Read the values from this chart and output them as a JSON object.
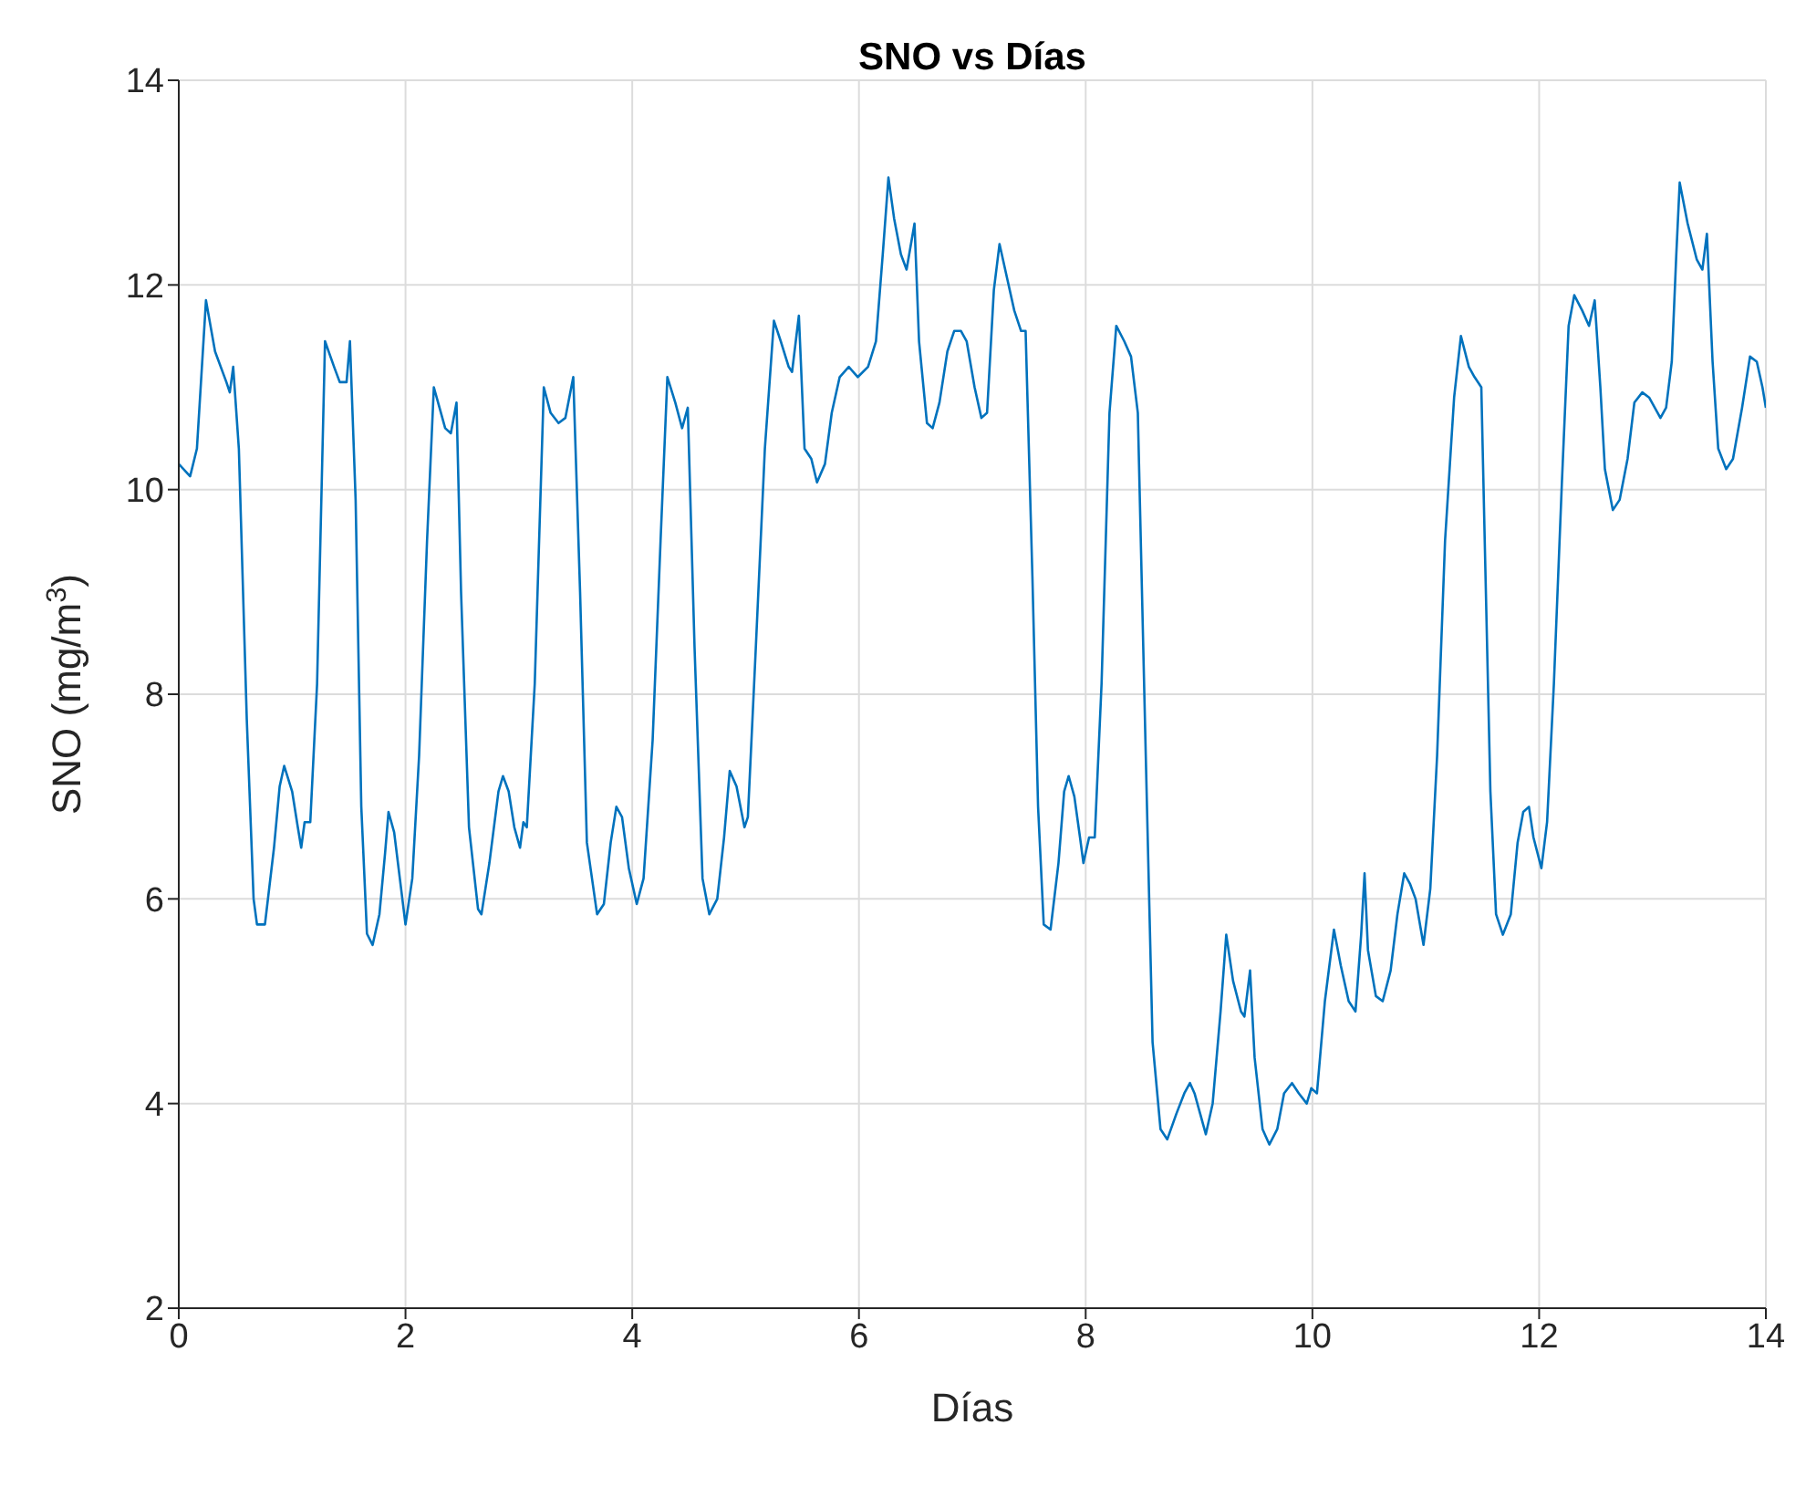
{
  "chart_data": {
    "type": "line",
    "title": "SNO vs Días",
    "xlabel": "Días",
    "ylabel": "SNO (mg/m$^{3}$)",
    "x": [
      0,
      0.1,
      0.16,
      0.24,
      0.32,
      0.42,
      0.45,
      0.48,
      0.53,
      0.6,
      0.66,
      0.69,
      0.76,
      0.84,
      0.89,
      0.93,
      1.0,
      1.05,
      1.08,
      1.11,
      1.16,
      1.22,
      1.29,
      1.37,
      1.42,
      1.48,
      1.51,
      1.56,
      1.61,
      1.66,
      1.71,
      1.77,
      1.82,
      1.85,
      1.9,
      1.95,
      2.0,
      2.06,
      2.12,
      2.19,
      2.25,
      2.3,
      2.35,
      2.4,
      2.45,
      2.49,
      2.56,
      2.64,
      2.67,
      2.74,
      2.82,
      2.86,
      2.91,
      2.96,
      3.01,
      3.04,
      3.07,
      3.14,
      3.22,
      3.28,
      3.35,
      3.41,
      3.48,
      3.54,
      3.6,
      3.69,
      3.75,
      3.81,
      3.86,
      3.91,
      3.97,
      4.04,
      4.1,
      4.18,
      4.25,
      4.31,
      4.38,
      4.44,
      4.49,
      4.55,
      4.62,
      4.68,
      4.75,
      4.81,
      4.86,
      4.92,
      4.99,
      5.02,
      5.09,
      5.17,
      5.25,
      5.31,
      5.38,
      5.41,
      5.47,
      5.52,
      5.58,
      5.63,
      5.7,
      5.76,
      5.83,
      5.91,
      5.99,
      6.08,
      6.15,
      6.21,
      6.26,
      6.31,
      6.37,
      6.42,
      6.49,
      6.53,
      6.6,
      6.65,
      6.71,
      6.78,
      6.84,
      6.9,
      6.95,
      7.02,
      7.08,
      7.13,
      7.19,
      7.24,
      7.31,
      7.37,
      7.43,
      7.47,
      7.53,
      7.58,
      7.63,
      7.69,
      7.76,
      7.81,
      7.85,
      7.9,
      7.95,
      7.98,
      8.03,
      8.08,
      8.14,
      8.21,
      8.27,
      8.34,
      8.4,
      8.46,
      8.53,
      8.59,
      8.66,
      8.72,
      8.8,
      8.87,
      8.92,
      8.96,
      9.01,
      9.06,
      9.12,
      9.19,
      9.24,
      9.3,
      9.37,
      9.4,
      9.45,
      9.49,
      9.56,
      9.62,
      9.69,
      9.75,
      9.82,
      9.88,
      9.95,
      9.99,
      10.04,
      10.11,
      10.19,
      10.25,
      10.32,
      10.38,
      10.43,
      10.46,
      10.49,
      10.56,
      10.62,
      10.69,
      10.75,
      10.81,
      10.86,
      10.91,
      10.98,
      11.04,
      11.1,
      11.17,
      11.25,
      11.31,
      11.38,
      11.43,
      11.49,
      11.52,
      11.57,
      11.62,
      11.68,
      11.75,
      11.81,
      11.86,
      11.91,
      11.95,
      12.02,
      12.07,
      12.13,
      12.2,
      12.26,
      12.31,
      12.38,
      12.44,
      12.49,
      12.54,
      12.58,
      12.65,
      12.71,
      12.78,
      12.84,
      12.91,
      12.97,
      13.02,
      13.07,
      13.12,
      13.17,
      13.21,
      13.24,
      13.31,
      13.39,
      13.44,
      13.48,
      13.53,
      13.58,
      13.65,
      13.71,
      13.79,
      13.86,
      13.92,
      13.97,
      14
    ],
    "series": [
      {
        "color": "#0072bd",
        "values": [
          10.25,
          10.13,
          10.4,
          11.85,
          11.35,
          11.05,
          10.95,
          11.2,
          10.4,
          7.75,
          6.0,
          5.75,
          5.75,
          6.5,
          7.1,
          7.3,
          7.05,
          6.7,
          6.5,
          6.75,
          6.75,
          8.1,
          11.45,
          11.2,
          11.05,
          11.05,
          11.45,
          9.9,
          6.9,
          5.66,
          5.55,
          5.85,
          6.45,
          6.85,
          6.65,
          6.2,
          5.75,
          6.2,
          7.4,
          9.5,
          11.0,
          10.8,
          10.6,
          10.55,
          10.85,
          9.0,
          6.7,
          5.9,
          5.85,
          6.35,
          7.05,
          7.2,
          7.05,
          6.7,
          6.5,
          6.75,
          6.7,
          8.1,
          11.0,
          10.75,
          10.65,
          10.7,
          11.1,
          9.0,
          6.55,
          5.85,
          5.95,
          6.55,
          6.9,
          6.8,
          6.3,
          5.95,
          6.2,
          7.55,
          9.5,
          11.1,
          10.85,
          10.6,
          10.8,
          8.45,
          6.2,
          5.85,
          6.0,
          6.6,
          7.25,
          7.1,
          6.7,
          6.8,
          8.45,
          10.4,
          11.65,
          11.45,
          11.2,
          11.15,
          11.7,
          10.4,
          10.3,
          10.07,
          10.25,
          10.75,
          11.1,
          11.2,
          11.1,
          11.2,
          11.45,
          12.3,
          13.05,
          12.65,
          12.3,
          12.15,
          12.6,
          11.45,
          10.65,
          10.6,
          10.85,
          11.35,
          11.55,
          11.55,
          11.45,
          11.0,
          10.7,
          10.75,
          11.95,
          12.4,
          12.05,
          11.75,
          11.55,
          11.55,
          9.15,
          6.9,
          5.75,
          5.7,
          6.35,
          7.05,
          7.2,
          7.0,
          6.6,
          6.35,
          6.6,
          6.6,
          8.1,
          10.75,
          11.6,
          11.45,
          11.3,
          10.75,
          7.4,
          4.6,
          3.75,
          3.65,
          3.9,
          4.1,
          4.2,
          4.1,
          3.9,
          3.7,
          4.0,
          4.9,
          5.65,
          5.2,
          4.9,
          4.85,
          5.3,
          4.45,
          3.75,
          3.6,
          3.75,
          4.1,
          4.2,
          4.1,
          4.0,
          4.15,
          4.1,
          5.0,
          5.7,
          5.35,
          5.0,
          4.9,
          5.65,
          6.25,
          5.5,
          5.05,
          5.0,
          5.3,
          5.85,
          6.25,
          6.15,
          6.0,
          5.55,
          6.1,
          7.4,
          9.5,
          10.9,
          11.5,
          11.2,
          11.1,
          11.0,
          9.5,
          7.05,
          5.85,
          5.65,
          5.85,
          6.55,
          6.85,
          6.9,
          6.6,
          6.3,
          6.75,
          8.1,
          10.05,
          11.6,
          11.9,
          11.75,
          11.6,
          11.85,
          11.0,
          10.2,
          9.8,
          9.9,
          10.3,
          10.85,
          10.95,
          10.9,
          10.8,
          10.7,
          10.8,
          11.25,
          12.3,
          13.0,
          12.6,
          12.25,
          12.15,
          12.5,
          11.25,
          10.4,
          10.2,
          10.3,
          10.8,
          11.3,
          11.25,
          11.0,
          10.8
        ]
      }
    ],
    "xlim": [
      0,
      14
    ],
    "xticks": [
      0,
      2,
      4,
      6,
      8,
      10,
      12,
      14
    ],
    "ylim": [
      2,
      14
    ],
    "yticks": [
      2,
      4,
      6,
      8,
      10,
      12,
      14
    ],
    "grid": true,
    "legend": false,
    "marker": "none",
    "line_style": "solid"
  }
}
